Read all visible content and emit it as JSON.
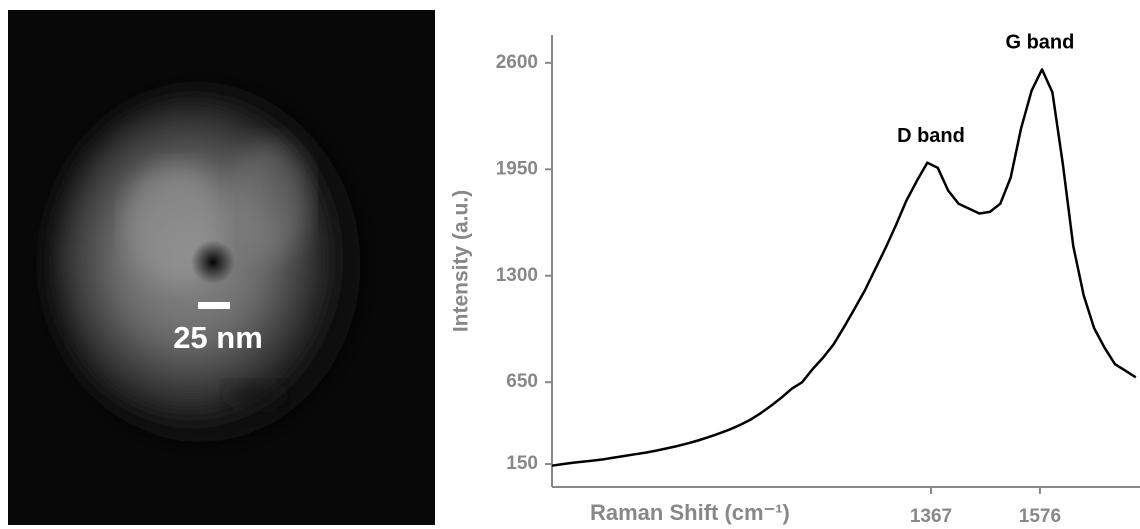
{
  "image": {
    "scale_bar_label": "25 nm"
  },
  "chart_data": {
    "type": "line",
    "x_label": "Raman Shift (cm⁻¹)",
    "y_label": "Intensity (a.u.)",
    "color": "#000000",
    "x": [
      640,
      660,
      680,
      700,
      720,
      740,
      760,
      780,
      800,
      820,
      840,
      860,
      880,
      900,
      920,
      940,
      960,
      980,
      1000,
      1020,
      1040,
      1060,
      1080,
      1100,
      1120,
      1140,
      1160,
      1180,
      1200,
      1220,
      1240,
      1260,
      1280,
      1300,
      1320,
      1340,
      1360,
      1380,
      1400,
      1420,
      1440,
      1460,
      1480,
      1500,
      1520,
      1540,
      1560,
      1580,
      1600,
      1620,
      1640,
      1660,
      1680,
      1700,
      1720,
      1740,
      1760
    ],
    "values": [
      140,
      150,
      158,
      165,
      172,
      180,
      190,
      200,
      210,
      220,
      232,
      246,
      260,
      276,
      294,
      314,
      336,
      360,
      388,
      420,
      460,
      505,
      555,
      610,
      650,
      730,
      800,
      880,
      985,
      1095,
      1210,
      1340,
      1470,
      1610,
      1760,
      1880,
      1990,
      1960,
      1820,
      1740,
      1710,
      1680,
      1690,
      1740,
      1900,
      2200,
      2430,
      2560,
      2420,
      1980,
      1480,
      1180,
      980,
      860,
      760,
      720,
      680
    ],
    "xlim": [
      640,
      1768
    ],
    "ylim": [
      10,
      2770
    ],
    "xticks": [
      1367,
      1576
    ],
    "yticks": [
      150,
      650,
      1300,
      1950,
      2600
    ],
    "annotations": [
      {
        "text": "D band",
        "x": 1367
      },
      {
        "text": "G band",
        "x": 1576
      }
    ]
  }
}
